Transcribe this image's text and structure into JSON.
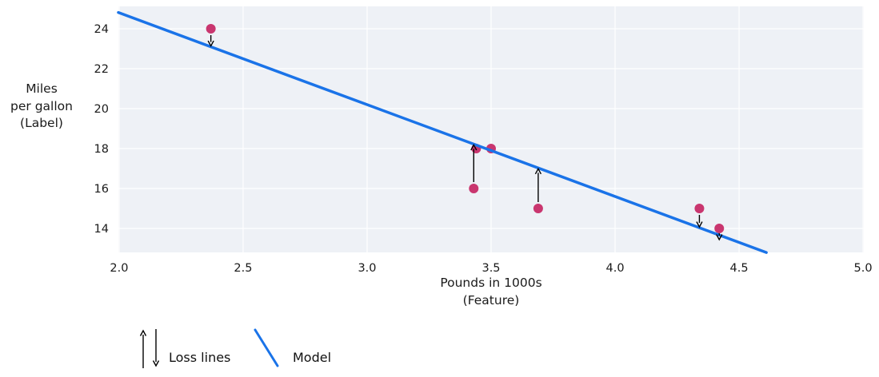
{
  "figure": {
    "ylabel_lines": [
      "Miles",
      "per gallon",
      "(Label)"
    ],
    "xlabel_lines": [
      "Pounds in 1000s",
      "(Feature)"
    ],
    "legend": {
      "loss_label": "Loss lines",
      "model_label": "Model"
    }
  },
  "chart_data": {
    "type": "scatter",
    "title": "",
    "xlabel": "Pounds in 1000s (Feature)",
    "ylabel": "Miles per gallon (Label)",
    "x_tick_values": [
      2.0,
      2.5,
      3.0,
      3.5,
      4.0,
      4.5,
      5.0
    ],
    "x_tick_labels": [
      "2.0",
      "2.5",
      "3.0",
      "3.5",
      "4.0",
      "4.5",
      "5.0"
    ],
    "y_tick_values": [
      24,
      22,
      20,
      18,
      16,
      14
    ],
    "y_tick_labels": [
      "24",
      "22",
      "20",
      "18",
      "16",
      "14"
    ],
    "xlim": [
      1.997,
      5.003
    ],
    "ylim": [
      12.8,
      25.12
    ],
    "grid": true,
    "points": [
      {
        "x": 2.37,
        "y": 24
      },
      {
        "x": 3.44,
        "y": 18
      },
      {
        "x": 3.5,
        "y": 18
      },
      {
        "x": 3.43,
        "y": 16
      },
      {
        "x": 3.69,
        "y": 15
      },
      {
        "x": 4.34,
        "y": 15
      },
      {
        "x": 4.42,
        "y": 14
      }
    ],
    "model_line": {
      "slope": -4.6,
      "intercept": 34.0,
      "x_start": 1.997,
      "x_end": 4.61,
      "label": "Model"
    },
    "loss_lines": {
      "label": "Loss lines",
      "min_gap_for_arrow": 0.25
    },
    "legend_position": "bottom-left",
    "colors": {
      "model": "#1a73e8",
      "points": "#c9366f",
      "plot_bg": "#eef1f6",
      "grid": "#ffffff",
      "arrow": "#000000",
      "text": "#1a1a1a"
    }
  }
}
